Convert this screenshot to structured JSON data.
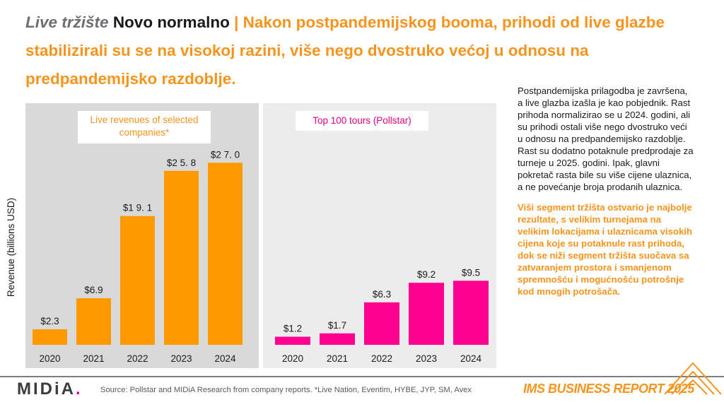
{
  "header": {
    "kicker": "Live tržište",
    "subtitle": "Novo normalno",
    "separator": "|",
    "headline": "Nakon postpandemijskog booma, prihodi od live glazbe stabilizirali su se na visokoj razini, više nego dvostruko većoj u odnosu na predpandemijsko razdoblje."
  },
  "chart_data": [
    {
      "type": "bar",
      "title": "Live revenues of selected companies*",
      "ylabel": "Revenue (billions USD)",
      "categories": [
        "2020",
        "2021",
        "2022",
        "2023",
        "2024"
      ],
      "values": [
        2.3,
        6.9,
        19.1,
        25.8,
        27.0
      ],
      "data_labels": [
        "$2.3",
        "$6.9",
        "$1 9. 1",
        "$2 5. 8",
        "$2 7. 0"
      ],
      "color": "#FF9900",
      "ylim": [
        0,
        28.5
      ]
    },
    {
      "type": "bar",
      "title": "Top 100 tours (Pollstar)",
      "categories": [
        "2020",
        "2021",
        "2022",
        "2023",
        "2024"
      ],
      "values": [
        1.2,
        1.7,
        6.3,
        9.2,
        9.5
      ],
      "data_labels": [
        "$1.2",
        "$1.7",
        "$6.3",
        "$9.2",
        "$9.5"
      ],
      "color": "#FF0090",
      "ylim": [
        0,
        28.5
      ]
    }
  ],
  "sidebar": {
    "paragraph": "Postpandemijska prilagodba je završena, a live glazba izašla je kao pobjednik. Rast prihoda normalizirao se u 2024. godini, ali su prihodi ostali više nego dvostruko veći u odnosu na predpandemijsko razdoblje. Rast su dodatno potaknule predprodaje za turneje u 2025. godini. Ipak, glavni pokretač rasta bile su više cijene ulaznica, a ne povećanje broja prodanih ulaznica.",
    "highlight": "Viši segment tržišta ostvario je najbolje rezultate, s velikim turnejama na velikim lokacijama i ulaznicama visokih cijena koje su potaknule rast prihoda, dok se niži segment tržišta suočava sa zatvaranjem prostora i smanjenom spremnošću i mogućnošću potrošnje kod mnogih potrošača."
  },
  "footer": {
    "logo_text": "MIDiA",
    "logo_dot": ".",
    "source": "Source: Pollstar and MIDiA Research from company reports. *Live Nation, Eventim, HYBE, JYP, SM, Avex",
    "report": "IMS BUSINESS REPORT 2025"
  }
}
